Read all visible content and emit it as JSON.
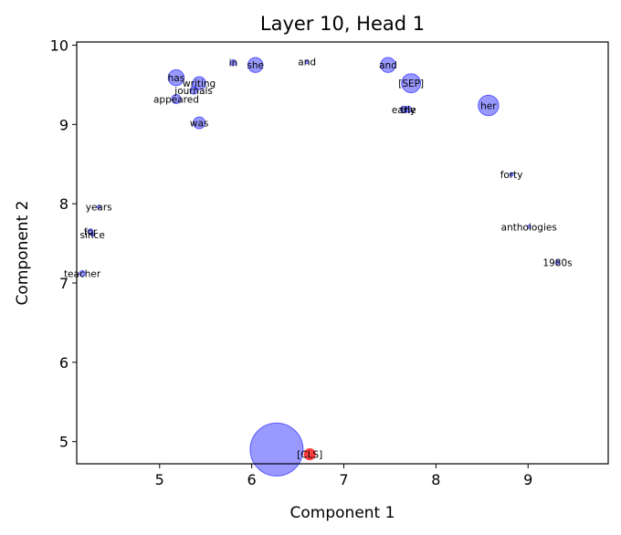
{
  "chart_data": {
    "type": "scatter",
    "title": "Layer 10, Head 1",
    "xlabel": "Component 1",
    "ylabel": "Component 2",
    "xlim": [
      4.1,
      9.87
    ],
    "ylim": [
      4.72,
      10.04
    ],
    "xticks": [
      5,
      6,
      7,
      8,
      9
    ],
    "yticks": [
      5,
      6,
      7,
      8,
      9,
      10
    ],
    "grid": false,
    "colors": {
      "token": "#0000ff",
      "cls": "#ff0000",
      "axis": "#000000"
    },
    "points": [
      {
        "label": "",
        "x": 6.27,
        "y": 4.9,
        "size": 1,
        "color": "token"
      },
      {
        "label": "[CLS]",
        "x": 6.63,
        "y": 4.84,
        "size": 0.045,
        "color": "cls"
      },
      {
        "label": "has",
        "x": 5.18,
        "y": 9.59,
        "size": 0.09,
        "color": "token"
      },
      {
        "label": "writing",
        "x": 5.43,
        "y": 9.52,
        "size": 0.06,
        "color": "token"
      },
      {
        "label": "journals",
        "x": 5.37,
        "y": 9.43,
        "size": 0.02,
        "color": "token"
      },
      {
        "label": "appeared",
        "x": 5.18,
        "y": 9.32,
        "size": 0.03,
        "color": "token"
      },
      {
        "label": "was",
        "x": 5.43,
        "y": 9.02,
        "size": 0.05,
        "color": "token"
      },
      {
        "label": "in",
        "x": 5.8,
        "y": 9.78,
        "size": 0.012,
        "color": "token"
      },
      {
        "label": "she",
        "x": 6.04,
        "y": 9.75,
        "size": 0.08,
        "color": "token"
      },
      {
        "label": "and",
        "x": 6.6,
        "y": 9.79,
        "size": 0.005,
        "color": "token"
      },
      {
        "label": "and",
        "x": 7.48,
        "y": 9.75,
        "size": 0.08,
        "color": "token"
      },
      {
        "label": "[SEP]",
        "x": 7.73,
        "y": 9.52,
        "size": 0.13,
        "color": "token"
      },
      {
        "label": "the",
        "x": 7.7,
        "y": 9.19,
        "size": 0.015,
        "color": "token"
      },
      {
        "label": "early",
        "x": 7.65,
        "y": 9.19,
        "size": 0.015,
        "color": "token"
      },
      {
        "label": "her",
        "x": 8.57,
        "y": 9.24,
        "size": 0.15,
        "color": "token"
      },
      {
        "label": "forty",
        "x": 8.82,
        "y": 8.37,
        "size": 0.005,
        "color": "token"
      },
      {
        "label": "anthologies",
        "x": 9.01,
        "y": 7.71,
        "size": 0.004,
        "color": "token"
      },
      {
        "label": "1980s",
        "x": 9.32,
        "y": 7.26,
        "size": 0.006,
        "color": "token"
      },
      {
        "label": "years",
        "x": 4.34,
        "y": 7.96,
        "size": 0.002,
        "color": "token"
      },
      {
        "label": "for",
        "x": 4.25,
        "y": 7.65,
        "size": 0.01,
        "color": "token"
      },
      {
        "label": "since",
        "x": 4.27,
        "y": 7.61,
        "size": 0.003,
        "color": "token"
      },
      {
        "label": "teacher",
        "x": 4.16,
        "y": 7.12,
        "size": 0.012,
        "color": "token"
      }
    ]
  }
}
